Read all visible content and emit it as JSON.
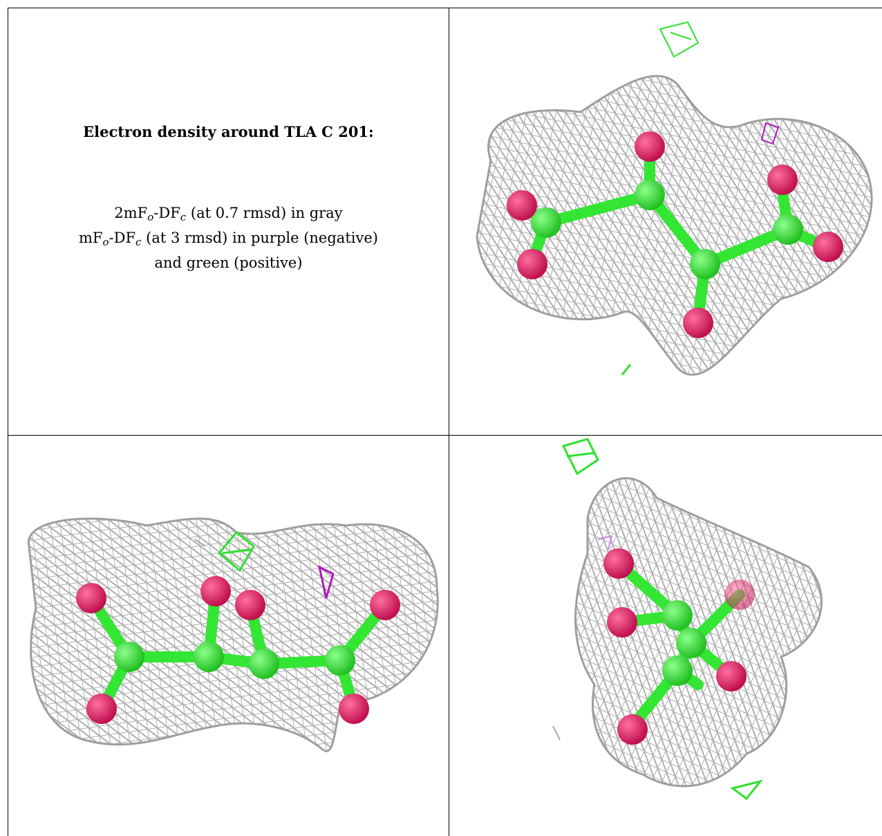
{
  "caption": {
    "title": "Electron density around TLA C 201:",
    "line1": {
      "a": "2mF",
      "o": "o",
      "b": "-DF",
      "c": "c",
      "rest": " (at 0.7 rmsd) in gray"
    },
    "line2": {
      "a": "mF",
      "o": "o",
      "b": "-DF",
      "c": "c",
      "rest": " (at 3 rmsd) in purple (negative)"
    },
    "line3": "and green (positive)"
  },
  "colors": {
    "mesh_2fofc": "#a8a8a8",
    "mesh_fofc_negative": "#b01ab8",
    "mesh_fofc_positive": "#2fe02f",
    "carbon": "#33e633",
    "oxygen": "#e8206b"
  },
  "panels": [
    {
      "view": "view-1",
      "image_desc": "stick-and-ball TLA ligand in density mesh"
    },
    {
      "view": "view-2",
      "image_desc": "stick-and-ball TLA ligand side view"
    },
    {
      "view": "view-3",
      "image_desc": "stick-and-ball TLA ligand end-on view"
    }
  ]
}
